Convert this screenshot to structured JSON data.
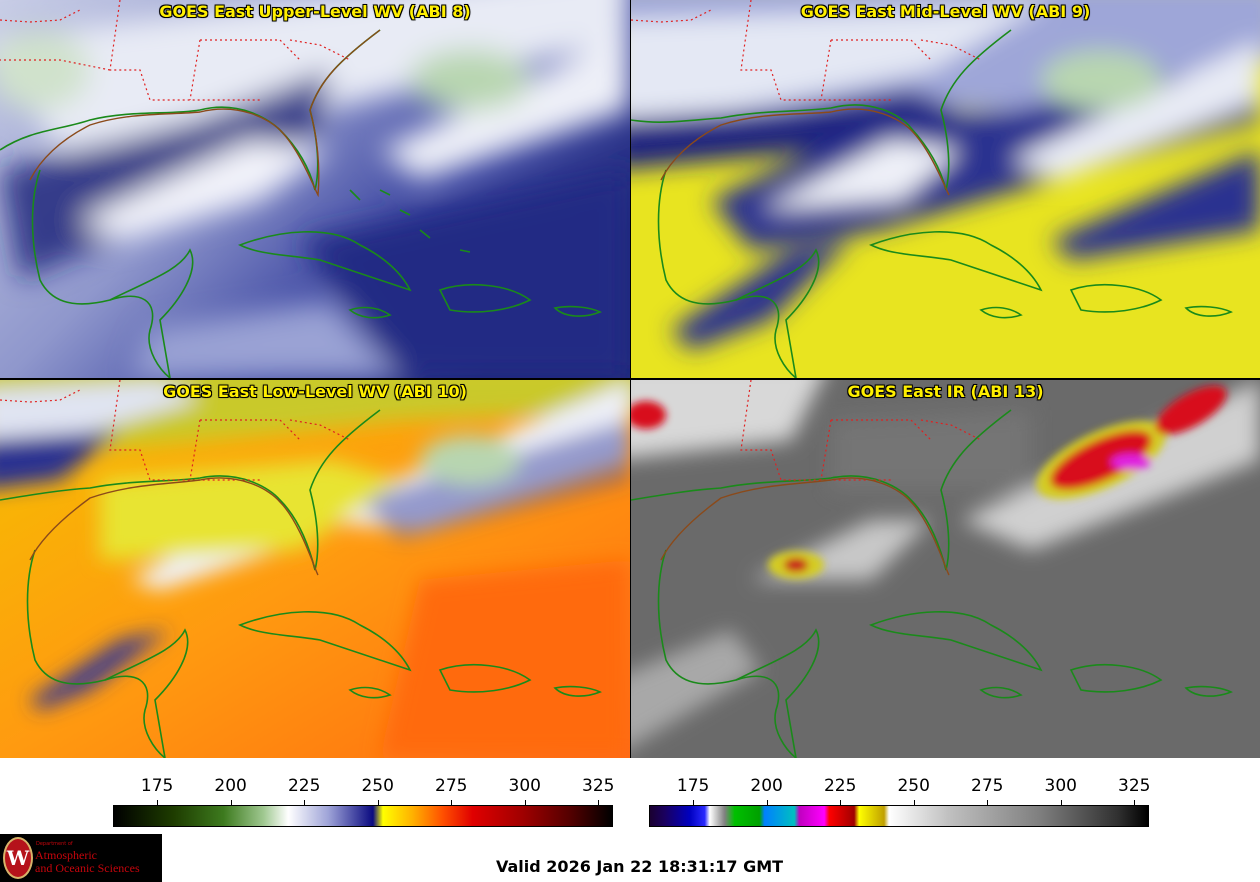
{
  "panels": [
    {
      "title": "GOES East Upper-Level WV (ABI 8)",
      "scheme": "upper"
    },
    {
      "title": "GOES East Mid-Level WV (ABI 9)",
      "scheme": "mid"
    },
    {
      "title": "GOES East Low-Level WV (ABI 10)",
      "scheme": "low"
    },
    {
      "title": "GOES East IR (ABI 13)",
      "scheme": "ir"
    }
  ],
  "colorbars": {
    "wv": {
      "min": 160,
      "max": 330,
      "ticks": [
        "175",
        "200",
        "225",
        "250",
        "275",
        "300",
        "325"
      ]
    },
    "ir": {
      "min": 160,
      "max": 330,
      "ticks": [
        "175",
        "200",
        "225",
        "250",
        "275",
        "300",
        "325"
      ]
    }
  },
  "logo": {
    "dept": "Department of",
    "line1": "Atmospheric",
    "line2": "and Oceanic Sciences",
    "seal": "W"
  },
  "valid_time": "Valid 2026 Jan 22 18:31:17 GMT",
  "colors": {
    "title": "#ffef00",
    "coast": "#1a8a1a",
    "borders": "#e02020"
  }
}
